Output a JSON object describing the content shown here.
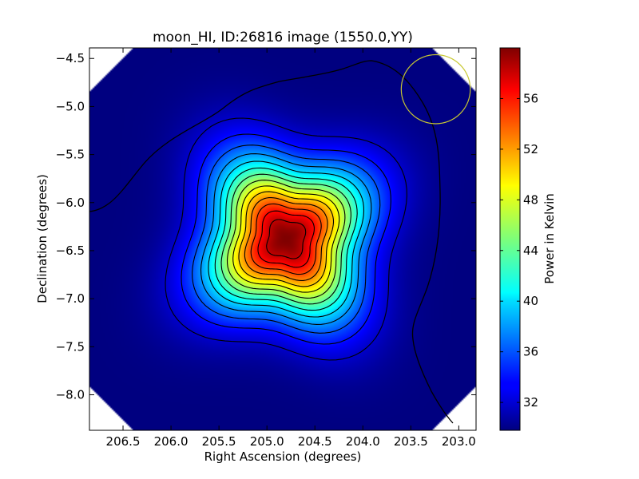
{
  "chart_data": {
    "type": "heatmap",
    "title": "moon_HI, ID:26816 image (1550.0,YY)",
    "xlabel": "Right Ascension (degrees)",
    "ylabel": "Declination (degrees)",
    "xlim": [
      206.85,
      202.82
    ],
    "ylim": [
      -8.37,
      -4.39
    ],
    "x_ticks": [
      206.5,
      206.0,
      205.5,
      205.0,
      204.5,
      204.0,
      203.5,
      203.0
    ],
    "x_tick_labels": [
      "206.5",
      "206.0",
      "205.5",
      "205.0",
      "204.5",
      "204.0",
      "203.5",
      "203.0"
    ],
    "y_ticks": [
      -4.5,
      -5.0,
      -5.5,
      -6.0,
      -6.5,
      -7.0,
      -7.5,
      -8.0
    ],
    "y_tick_labels": [
      "−4.5",
      "−5.0",
      "−5.5",
      "−6.0",
      "−6.5",
      "−7.0",
      "−7.5",
      "−8.0"
    ],
    "colorbar": {
      "label": "Power in Kelvin",
      "range": [
        29.8,
        60.0
      ],
      "ticks": [
        32,
        36,
        40,
        44,
        48,
        52,
        56
      ],
      "tick_labels": [
        "32",
        "36",
        "40",
        "44",
        "48",
        "52",
        "56"
      ],
      "colormap": "jet"
    },
    "peak": {
      "ra": 204.8,
      "dec": -6.38,
      "value": 60.0
    },
    "background_value": 29.8,
    "contour_levels": [
      32,
      34,
      36,
      38,
      40,
      42,
      44,
      46,
      48,
      50,
      52,
      54,
      56,
      58
    ],
    "beam_circle": {
      "ra": 203.24,
      "dec": -4.82,
      "radius_deg": 0.36,
      "color": "#c8c832"
    },
    "grid": false,
    "legend": "none"
  }
}
